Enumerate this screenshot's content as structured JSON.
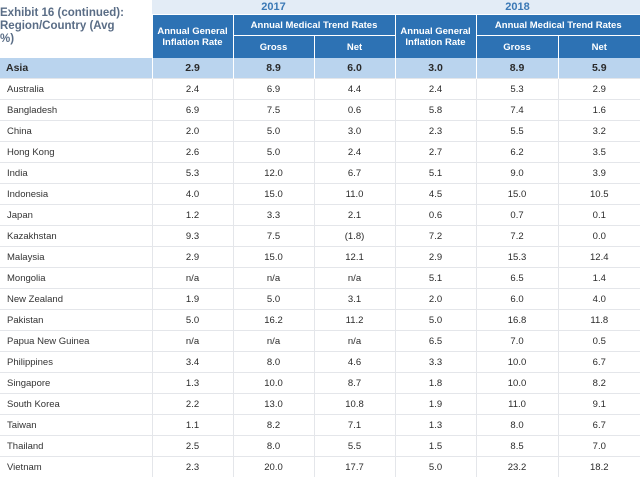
{
  "title": "Exhibit 16 (continued): Region/Country (Avg %)",
  "years": [
    "2017",
    "2018"
  ],
  "headers": {
    "inflation": "Annual General Inflation Rate",
    "medical": "Annual Medical Trend Rates",
    "gross": "Gross",
    "net": "Net"
  },
  "region": {
    "name": "Asia",
    "values": [
      "2.9",
      "8.9",
      "6.0",
      "3.0",
      "8.9",
      "5.9"
    ]
  },
  "rows": [
    {
      "name": "Australia",
      "values": [
        "2.4",
        "6.9",
        "4.4",
        "2.4",
        "5.3",
        "2.9"
      ]
    },
    {
      "name": "Bangladesh",
      "values": [
        "6.9",
        "7.5",
        "0.6",
        "5.8",
        "7.4",
        "1.6"
      ]
    },
    {
      "name": "China",
      "values": [
        "2.0",
        "5.0",
        "3.0",
        "2.3",
        "5.5",
        "3.2"
      ]
    },
    {
      "name": "Hong Kong",
      "values": [
        "2.6",
        "5.0",
        "2.4",
        "2.7",
        "6.2",
        "3.5"
      ]
    },
    {
      "name": "India",
      "values": [
        "5.3",
        "12.0",
        "6.7",
        "5.1",
        "9.0",
        "3.9"
      ]
    },
    {
      "name": "Indonesia",
      "values": [
        "4.0",
        "15.0",
        "11.0",
        "4.5",
        "15.0",
        "10.5"
      ]
    },
    {
      "name": "Japan",
      "values": [
        "1.2",
        "3.3",
        "2.1",
        "0.6",
        "0.7",
        "0.1"
      ]
    },
    {
      "name": "Kazakhstan",
      "values": [
        "9.3",
        "7.5",
        "(1.8)",
        "7.2",
        "7.2",
        "0.0"
      ]
    },
    {
      "name": "Malaysia",
      "values": [
        "2.9",
        "15.0",
        "12.1",
        "2.9",
        "15.3",
        "12.4"
      ]
    },
    {
      "name": "Mongolia",
      "values": [
        "n/a",
        "n/a",
        "n/a",
        "5.1",
        "6.5",
        "1.4"
      ]
    },
    {
      "name": "New Zealand",
      "values": [
        "1.9",
        "5.0",
        "3.1",
        "2.0",
        "6.0",
        "4.0"
      ]
    },
    {
      "name": "Pakistan",
      "values": [
        "5.0",
        "16.2",
        "11.2",
        "5.0",
        "16.8",
        "11.8"
      ]
    },
    {
      "name": "Papua New Guinea",
      "values": [
        "n/a",
        "n/a",
        "n/a",
        "6.5",
        "7.0",
        "0.5"
      ]
    },
    {
      "name": "Philippines",
      "values": [
        "3.4",
        "8.0",
        "4.6",
        "3.3",
        "10.0",
        "6.7"
      ]
    },
    {
      "name": "Singapore",
      "values": [
        "1.3",
        "10.0",
        "8.7",
        "1.8",
        "10.0",
        "8.2"
      ]
    },
    {
      "name": "South Korea",
      "values": [
        "2.2",
        "13.0",
        "10.8",
        "1.9",
        "11.0",
        "9.1"
      ]
    },
    {
      "name": "Taiwan",
      "values": [
        "1.1",
        "8.2",
        "7.1",
        "1.3",
        "8.0",
        "6.7"
      ]
    },
    {
      "name": "Thailand",
      "values": [
        "2.5",
        "8.0",
        "5.5",
        "1.5",
        "8.5",
        "7.0"
      ]
    },
    {
      "name": "Vietnam",
      "values": [
        "2.3",
        "20.0",
        "17.7",
        "5.0",
        "23.2",
        "18.2"
      ]
    }
  ]
}
